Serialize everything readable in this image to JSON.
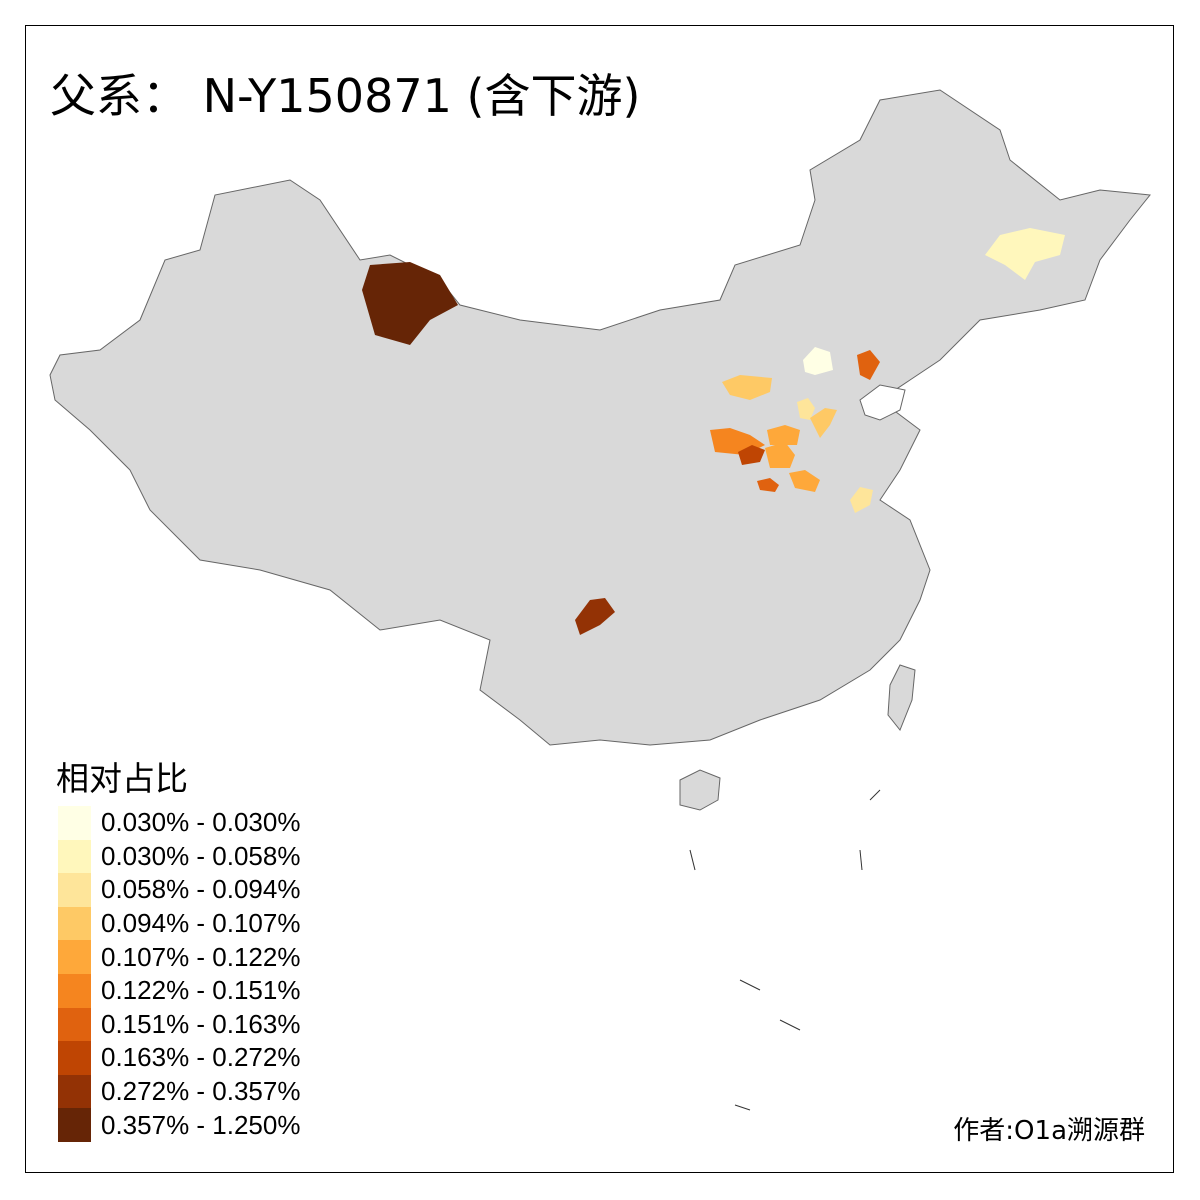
{
  "title": "父系： N-Y150871 (含下游)",
  "legend": {
    "title": "相对占比",
    "classes": [
      {
        "label": "0.030% - 0.030%",
        "color": "#ffffe5"
      },
      {
        "label": "0.030% - 0.058%",
        "color": "#fff7bc"
      },
      {
        "label": "0.058% - 0.094%",
        "color": "#fee59a"
      },
      {
        "label": "0.094% - 0.107%",
        "color": "#fec965"
      },
      {
        "label": "0.107% - 0.122%",
        "color": "#fea83a"
      },
      {
        "label": "0.122% - 0.151%",
        "color": "#f5851f"
      },
      {
        "label": "0.151% - 0.163%",
        "color": "#e0620f"
      },
      {
        "label": "0.163% - 0.272%",
        "color": "#bf4503"
      },
      {
        "label": "0.272% - 0.357%",
        "color": "#933205"
      },
      {
        "label": "0.357% - 1.250%",
        "color": "#662506"
      }
    ]
  },
  "map": {
    "base_color": "#d9d9d9",
    "border_color": "#666666"
  },
  "author": "作者:O1a溯源群"
}
